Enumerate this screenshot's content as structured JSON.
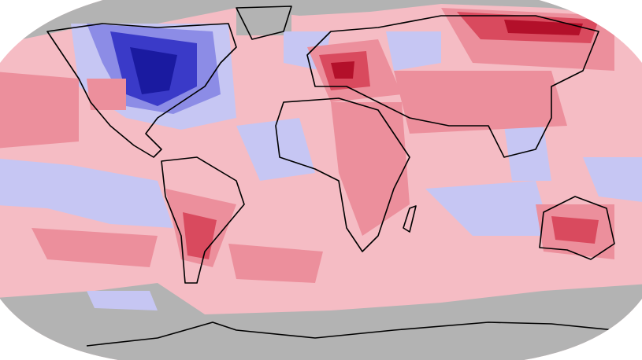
{
  "map": {
    "colors": {
      "background": "#ffffff",
      "no_data": "#b3b3b3",
      "near_normal_warm": "#f5bcc4",
      "warm": "#ec8f9c",
      "much_warm": "#d94a5e",
      "record_warm": "#b3102a",
      "near_normal_cool": "#c6c6f3",
      "cool": "#8c8ce6",
      "much_cool": "#3a3ac8",
      "record_cool": "#1a1aa0",
      "coastline": "#000000"
    }
  }
}
